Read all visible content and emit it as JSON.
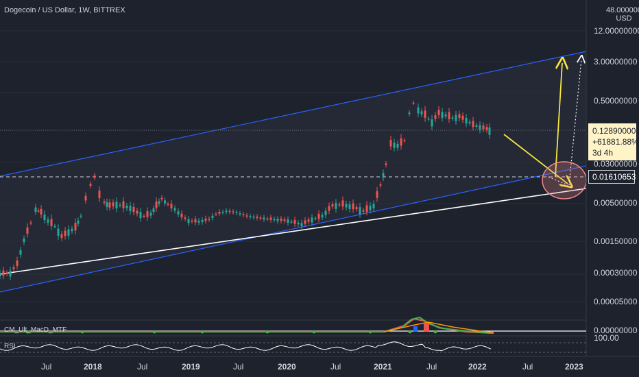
{
  "chart": {
    "title": "Dogecoin / US Dollar, 1W, BITTREX",
    "currency_top": "48.000000",
    "currency": "USD",
    "price_axis": [
      "12.00000000",
      "3.00000000",
      "0.50000000",
      "0.03000000",
      "0.00500000",
      "0.00150000",
      "0.00030000",
      "0.00005000"
    ],
    "time_axis": [
      {
        "label": "Jul",
        "bold": false
      },
      {
        "label": "2018",
        "bold": true
      },
      {
        "label": "Jul",
        "bold": false
      },
      {
        "label": "2019",
        "bold": true
      },
      {
        "label": "Jul",
        "bold": false
      },
      {
        "label": "2020",
        "bold": true
      },
      {
        "label": "Jul",
        "bold": false
      },
      {
        "label": "2021",
        "bold": true
      },
      {
        "label": "Jul",
        "bold": false
      },
      {
        "label": "2022",
        "bold": true
      },
      {
        "label": "Jul",
        "bold": false
      },
      {
        "label": "2023",
        "bold": true
      }
    ],
    "price_tag": {
      "price": "0.12890000",
      "change": "+61881.88%",
      "countdown": "3d 4h"
    },
    "level_tag": "0.01610653",
    "macd_indicator": "CM_Ult_MacD_MTF",
    "macd_value": "0.00000000",
    "rsi_indicator": "RSI",
    "rsi_value": "100.00"
  },
  "colors": {
    "background": "#1e222d",
    "channel_line": "#2962ff",
    "trend_line": "#ffffff",
    "arrow": "#f5e642",
    "candle_up": "#26a69a",
    "candle_down": "#ef5350",
    "circle": "#f28b8b"
  },
  "icons": {
    "arrow_up": "yellow-arrow",
    "dotted_arrow": "white-dotted-arrow"
  }
}
